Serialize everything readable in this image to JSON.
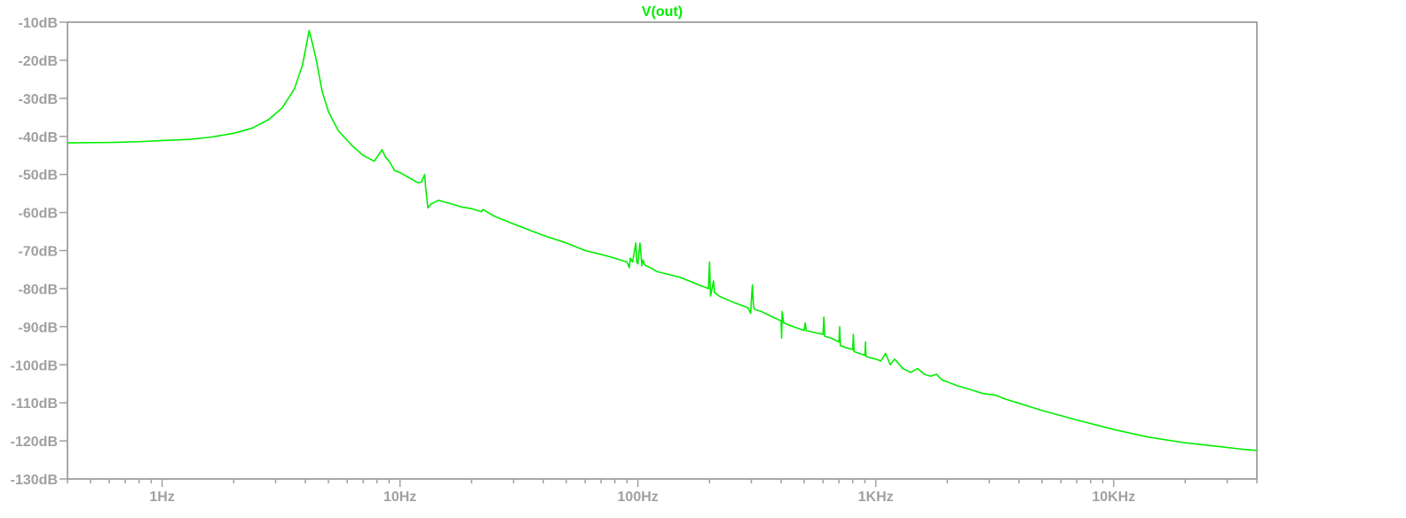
{
  "colors": {
    "trace": "#00ee00",
    "axis": "#a0a0a0",
    "frame": "#8c8c8c",
    "background": "#ffffff"
  },
  "chart_data": {
    "type": "line",
    "title": "V(out)",
    "xlabel": "",
    "ylabel": "",
    "x_scale": "log",
    "xlim": [
      0.4,
      40000
    ],
    "ylim": [
      -130,
      -10
    ],
    "grid": false,
    "x_ticks": [
      {
        "value": 1,
        "label": "1Hz"
      },
      {
        "value": 10,
        "label": "10Hz"
      },
      {
        "value": 100,
        "label": "100Hz"
      },
      {
        "value": 1000,
        "label": "1KHz"
      },
      {
        "value": 10000,
        "label": "10KHz"
      }
    ],
    "y_ticks": [
      {
        "value": -10,
        "label": "-10dB"
      },
      {
        "value": -20,
        "label": "-20dB"
      },
      {
        "value": -30,
        "label": "-30dB"
      },
      {
        "value": -40,
        "label": "-40dB"
      },
      {
        "value": -50,
        "label": "-50dB"
      },
      {
        "value": -60,
        "label": "-60dB"
      },
      {
        "value": -70,
        "label": "-70dB"
      },
      {
        "value": -80,
        "label": "-80dB"
      },
      {
        "value": -90,
        "label": "-90dB"
      },
      {
        "value": -100,
        "label": "-100dB"
      },
      {
        "value": -110,
        "label": "-110dB"
      },
      {
        "value": -120,
        "label": "-120dB"
      },
      {
        "value": -130,
        "label": "-130dB"
      }
    ],
    "series": [
      {
        "name": "V(out)",
        "x": [
          0.4,
          0.6,
          0.8,
          1.0,
          1.3,
          1.6,
          2.0,
          2.4,
          2.8,
          3.2,
          3.6,
          3.9,
          4.15,
          4.3,
          4.45,
          4.7,
          5.0,
          5.5,
          6.3,
          7.0,
          7.8,
          8.4,
          8.7,
          9.0,
          9.5,
          10.0,
          11.0,
          11.9,
          12.3,
          12.7,
          12.8,
          13.1,
          13.5,
          14.5,
          16.0,
          18.0,
          20.0,
          22.0,
          22.3,
          25.0,
          30.0,
          40.0,
          50.0,
          60.0,
          70.0,
          80.0,
          90.0,
          92.0,
          93.0,
          95.0,
          98.0,
          99.0,
          100.0,
          102.0,
          104.0,
          105.0,
          107.0,
          110.0,
          113.0,
          120.0,
          150.0,
          180.0,
          198.0,
          200.0,
          202.0,
          205.0,
          208.0,
          210.0,
          220.0,
          250.0,
          290.0,
          298.0,
          300.0,
          303.0,
          306.0,
          310.0,
          330.0,
          370.0,
          400.0,
          402.0,
          404.0,
          410.0,
          450.0,
          500.0,
          505.0,
          510.0,
          550.0,
          600.0,
          605.0,
          610.0,
          650.0,
          700.0,
          705.0,
          710.0,
          750.0,
          800.0,
          805.0,
          810.0,
          850.0,
          900.0,
          905.0,
          910.0,
          950.0,
          1000.0,
          1050.0,
          1100.0,
          1150.0,
          1200.0,
          1300.0,
          1400.0,
          1500.0,
          1600.0,
          1700.0,
          1800.0,
          1900.0,
          2000.0,
          2200.0,
          2500.0,
          2800.0,
          3200.0,
          3500.0,
          5000.0,
          7000.0,
          10000.0,
          14000.0,
          20000.0,
          28000.0,
          35000.0,
          40000.0
        ],
        "y": [
          -41.7,
          -41.6,
          -41.4,
          -41.1,
          -40.8,
          -40.2,
          -39.2,
          -37.8,
          -35.6,
          -32.5,
          -27.5,
          -21.0,
          -12.2,
          -16.0,
          -20.0,
          -28.0,
          -33.5,
          -38.5,
          -42.5,
          -45.0,
          -46.5,
          -43.5,
          -45.5,
          -46.5,
          -49.0,
          -49.5,
          -51.0,
          -52.2,
          -52.0,
          -50.0,
          -53.0,
          -58.8,
          -57.8,
          -56.8,
          -57.5,
          -58.5,
          -59.0,
          -59.8,
          -59.2,
          -61.0,
          -63.0,
          -66.0,
          -68.0,
          -70.0,
          -71.0,
          -72.0,
          -73.0,
          -74.5,
          -72.0,
          -73.0,
          -68.0,
          -73.0,
          -73.5,
          -68.0,
          -74.0,
          -72.5,
          -73.8,
          -74.2,
          -74.5,
          -75.5,
          -77.0,
          -79.0,
          -80.0,
          -73.0,
          -82.0,
          -80.0,
          -78.0,
          -81.0,
          -82.0,
          -83.5,
          -85.0,
          -86.5,
          -83.0,
          -79.0,
          -84.5,
          -85.5,
          -86.0,
          -87.5,
          -88.5,
          -93.0,
          -86.0,
          -89.0,
          -90.0,
          -91.0,
          -89.0,
          -91.0,
          -91.5,
          -92.0,
          -87.5,
          -92.5,
          -93.0,
          -94.0,
          -90.0,
          -95.0,
          -95.5,
          -96.0,
          -92.0,
          -96.5,
          -97.0,
          -97.5,
          -94.0,
          -97.8,
          -98.2,
          -98.5,
          -99.0,
          -97.0,
          -100.0,
          -98.5,
          -101.0,
          -102.0,
          -101.0,
          -102.5,
          -103.0,
          -102.5,
          -104.0,
          -104.5,
          -105.5,
          -106.5,
          -107.5,
          -108.0,
          -109.0,
          -112.0,
          -114.5,
          -117.0,
          -119.0,
          -120.5,
          -121.5,
          -122.2,
          -122.5
        ]
      }
    ]
  }
}
